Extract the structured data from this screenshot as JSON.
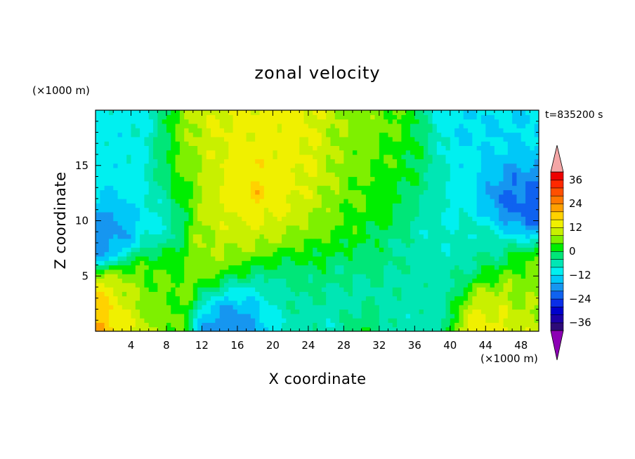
{
  "chart_data": {
    "type": "heatmap",
    "title": "zonal velocity",
    "xlabel": "X coordinate",
    "ylabel": "Z coordinate",
    "x_unit": "(×1000 m)",
    "y_unit": "(×1000 m)",
    "time_label": "t=835200 s",
    "xlim": [
      0,
      50
    ],
    "ylim": [
      0,
      20
    ],
    "x_ticks": [
      4,
      8,
      12,
      16,
      20,
      24,
      28,
      32,
      36,
      40,
      44,
      48
    ],
    "y_ticks": [
      5,
      10,
      15
    ],
    "colorbar": {
      "levels": [
        -40,
        -36,
        -32,
        -28,
        -24,
        -20,
        -16,
        -12,
        -8,
        -4,
        0,
        4,
        8,
        12,
        16,
        20,
        24,
        28,
        32,
        36,
        40
      ],
      "colors": [
        "#2d0a78",
        "#1c00a8",
        "#0000cc",
        "#0a2ee8",
        "#0f62f0",
        "#1696f0",
        "#00c8f8",
        "#00f0f0",
        "#00e6b4",
        "#00e678",
        "#00ee00",
        "#7ef000",
        "#c8f000",
        "#f0f000",
        "#ffd200",
        "#ffa000",
        "#ff7800",
        "#ff5000",
        "#ff2800",
        "#ee0000"
      ],
      "under_color": "#8c00b4",
      "over_color": "#f4a6a6",
      "tick_values": [
        36,
        24,
        12,
        0,
        -12,
        -24,
        -36
      ],
      "tick_labels": [
        "36",
        "24",
        "12",
        "0",
        "−12",
        "−24",
        "−36"
      ]
    },
    "field_features": [
      {
        "x": 0.5,
        "z": 0.6,
        "value": 22,
        "r": 2.5
      },
      {
        "x": 3,
        "z": 1.5,
        "value": 12,
        "r": 3
      },
      {
        "x": 6,
        "z": 3.5,
        "value": 4,
        "r": 3
      },
      {
        "x": 4,
        "z": 14,
        "value": -10,
        "r": 5
      },
      {
        "x": 1.5,
        "z": 9.5,
        "value": -20,
        "r": 2.3
      },
      {
        "x": 10,
        "z": 15,
        "value": 6,
        "r": 3
      },
      {
        "x": 14,
        "z": 17,
        "value": 12,
        "r": 4
      },
      {
        "x": 20,
        "z": 16,
        "value": 14,
        "r": 5
      },
      {
        "x": 18,
        "z": 12,
        "value": 19,
        "r": 3.5
      },
      {
        "x": 24,
        "z": 12.5,
        "value": 12,
        "r": 5
      },
      {
        "x": 16,
        "z": 8.5,
        "value": 8,
        "r": 4
      },
      {
        "x": 18.5,
        "z": 12.5,
        "value": 28,
        "r": 0.6
      },
      {
        "x": 30,
        "z": 12,
        "value": 2,
        "r": 4
      },
      {
        "x": 26,
        "z": 6,
        "value": 0,
        "r": 5
      },
      {
        "x": 30,
        "z": 17,
        "value": 6,
        "r": 3.5
      },
      {
        "x": 35,
        "z": 14,
        "value": 2,
        "r": 3.5
      },
      {
        "x": 37,
        "z": 7,
        "value": -6,
        "r": 4
      },
      {
        "x": 40,
        "z": 12,
        "value": -10,
        "r": 4
      },
      {
        "x": 44,
        "z": 18,
        "value": -12,
        "r": 4
      },
      {
        "x": 46.5,
        "z": 12,
        "value": -22,
        "r": 2.5
      },
      {
        "x": 44,
        "z": 7,
        "value": -4,
        "r": 3
      },
      {
        "x": 47.5,
        "z": 3.5,
        "value": 6,
        "r": 2.5
      },
      {
        "x": 45,
        "z": 1.8,
        "value": 14,
        "r": 3
      },
      {
        "x": 20,
        "z": 3.2,
        "value": -6,
        "r": 4
      },
      {
        "x": 17,
        "z": 1,
        "value": -22,
        "r": 3
      },
      {
        "x": 28,
        "z": 2.5,
        "value": -10,
        "r": 4
      },
      {
        "x": 30,
        "z": 0.4,
        "value": 4,
        "r": 2
      },
      {
        "x": 36,
        "z": 3,
        "value": -6,
        "r": 3
      },
      {
        "x": 32,
        "z": 6,
        "value": -2,
        "r": 2.5
      }
    ]
  }
}
